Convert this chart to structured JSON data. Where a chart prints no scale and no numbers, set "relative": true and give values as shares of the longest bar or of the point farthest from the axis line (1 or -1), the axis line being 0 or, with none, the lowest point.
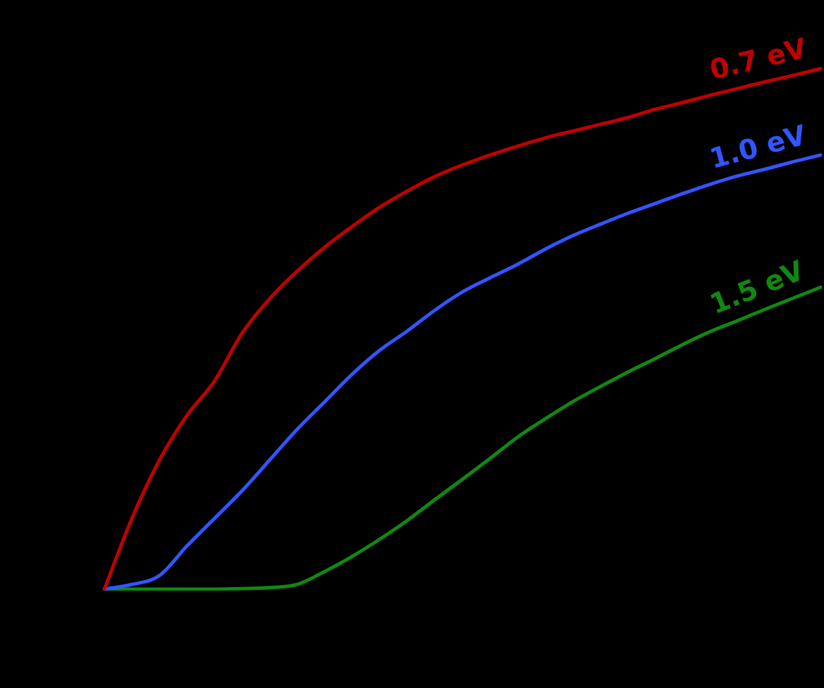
{
  "chart_data": {
    "type": "line",
    "relative": true,
    "legend": false,
    "grid": false,
    "tick_labels": false,
    "marker": "none",
    "line_style": "solid",
    "categories": [
      null,
      null,
      null,
      null,
      null,
      null,
      null,
      null,
      null,
      null,
      null,
      null,
      null,
      null,
      null,
      null,
      null,
      null,
      null,
      null,
      null,
      null,
      null,
      null,
      null,
      null,
      null
    ],
    "series": [
      {
        "name": "0.7 eV",
        "color": "#c00000",
        "values": [
          0,
          0.136,
          0.248,
          0.334,
          0.4,
          0.492,
          0.558,
          0.611,
          0.657,
          0.697,
          0.734,
          0.765,
          0.793,
          0.815,
          0.834,
          0.851,
          0.867,
          0.88,
          0.893,
          0.906,
          0.922,
          0.935,
          0.949,
          0.962,
          0.975,
          0.987,
          1
        ]
      },
      {
        "name": "1.0 eV",
        "color": "#3355ff",
        "values": [
          0,
          0.009,
          0.026,
          0.083,
          0.136,
          0.189,
          0.248,
          0.307,
          0.36,
          0.413,
          0.459,
          0.496,
          0.536,
          0.571,
          0.598,
          0.624,
          0.653,
          0.679,
          0.701,
          0.722,
          0.741,
          0.76,
          0.778,
          0.794,
          0.807,
          0.821,
          0.834
        ]
      },
      {
        "name": "1.5 eV",
        "color": "#118811",
        "values": [
          0,
          0,
          0,
          0,
          0,
          0.001,
          0.003,
          0.009,
          0.034,
          0.063,
          0.096,
          0.132,
          0.172,
          0.211,
          0.251,
          0.292,
          0.327,
          0.36,
          0.389,
          0.417,
          0.443,
          0.47,
          0.495,
          0.516,
          0.538,
          0.559,
          0.58
        ]
      }
    ]
  }
}
